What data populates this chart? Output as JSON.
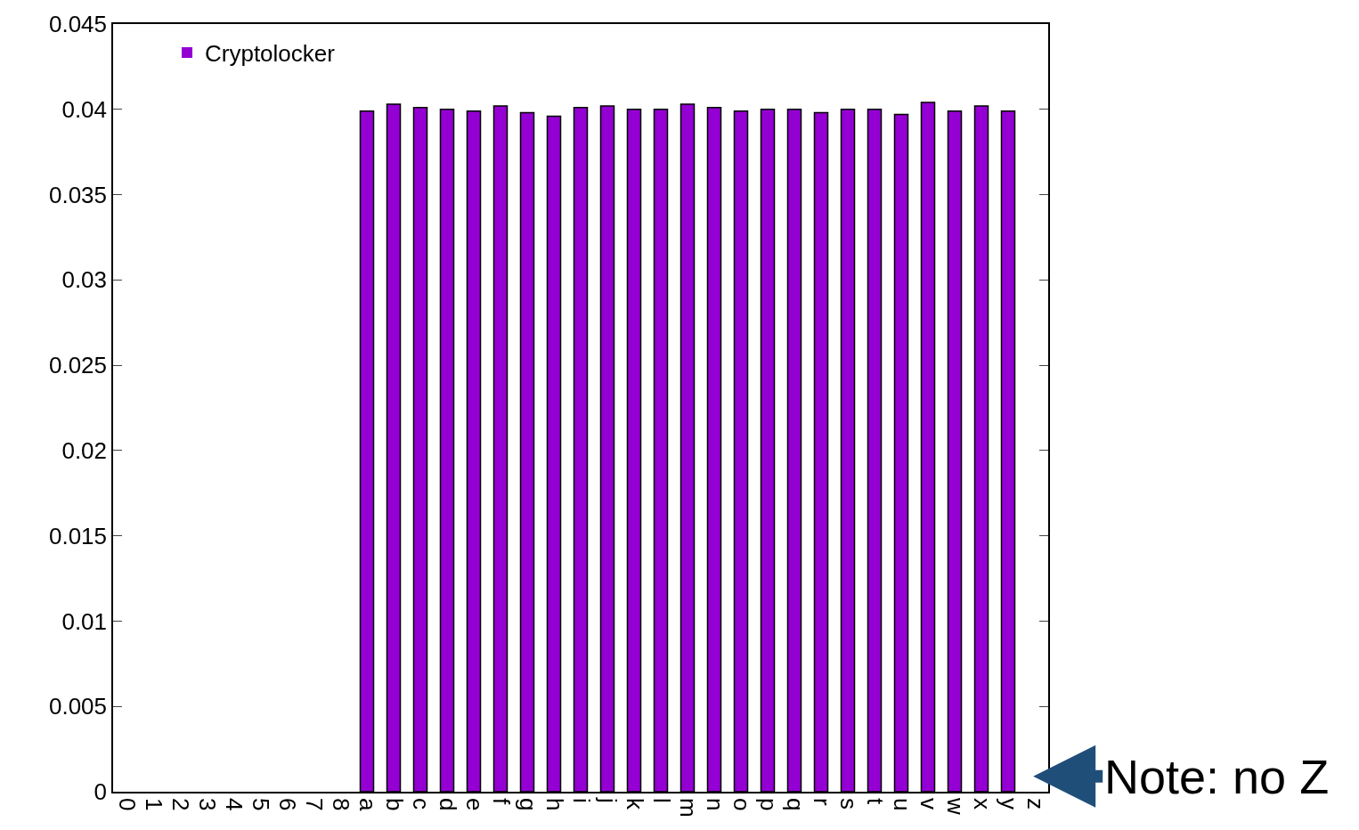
{
  "chart_data": {
    "type": "bar",
    "categories": [
      "0",
      "1",
      "2",
      "3",
      "4",
      "5",
      "6",
      "7",
      "8",
      "a",
      "b",
      "c",
      "d",
      "e",
      "f",
      "g",
      "h",
      "i",
      "j",
      "k",
      "l",
      "m",
      "n",
      "o",
      "p",
      "q",
      "r",
      "s",
      "t",
      "u",
      "v",
      "w",
      "x",
      "y",
      "z"
    ],
    "series": [
      {
        "name": "Cryptolocker",
        "color": "#9400d3",
        "values": [
          0,
          0,
          0,
          0,
          0,
          0,
          0,
          0,
          0,
          0.0399,
          0.0403,
          0.0401,
          0.04,
          0.0399,
          0.0402,
          0.0398,
          0.0396,
          0.0401,
          0.0402,
          0.04,
          0.04,
          0.0403,
          0.0401,
          0.0399,
          0.04,
          0.04,
          0.0398,
          0.04,
          0.04,
          0.0397,
          0.0404,
          0.0399,
          0.0402,
          0.0399,
          0
        ]
      }
    ],
    "ylim": [
      0,
      0.045
    ],
    "yticks": [
      0,
      0.005,
      0.01,
      0.015,
      0.02,
      0.025,
      0.03,
      0.035,
      0.04,
      0.045
    ],
    "legend": "top left",
    "annotations": [
      "Note: no Z"
    ]
  }
}
